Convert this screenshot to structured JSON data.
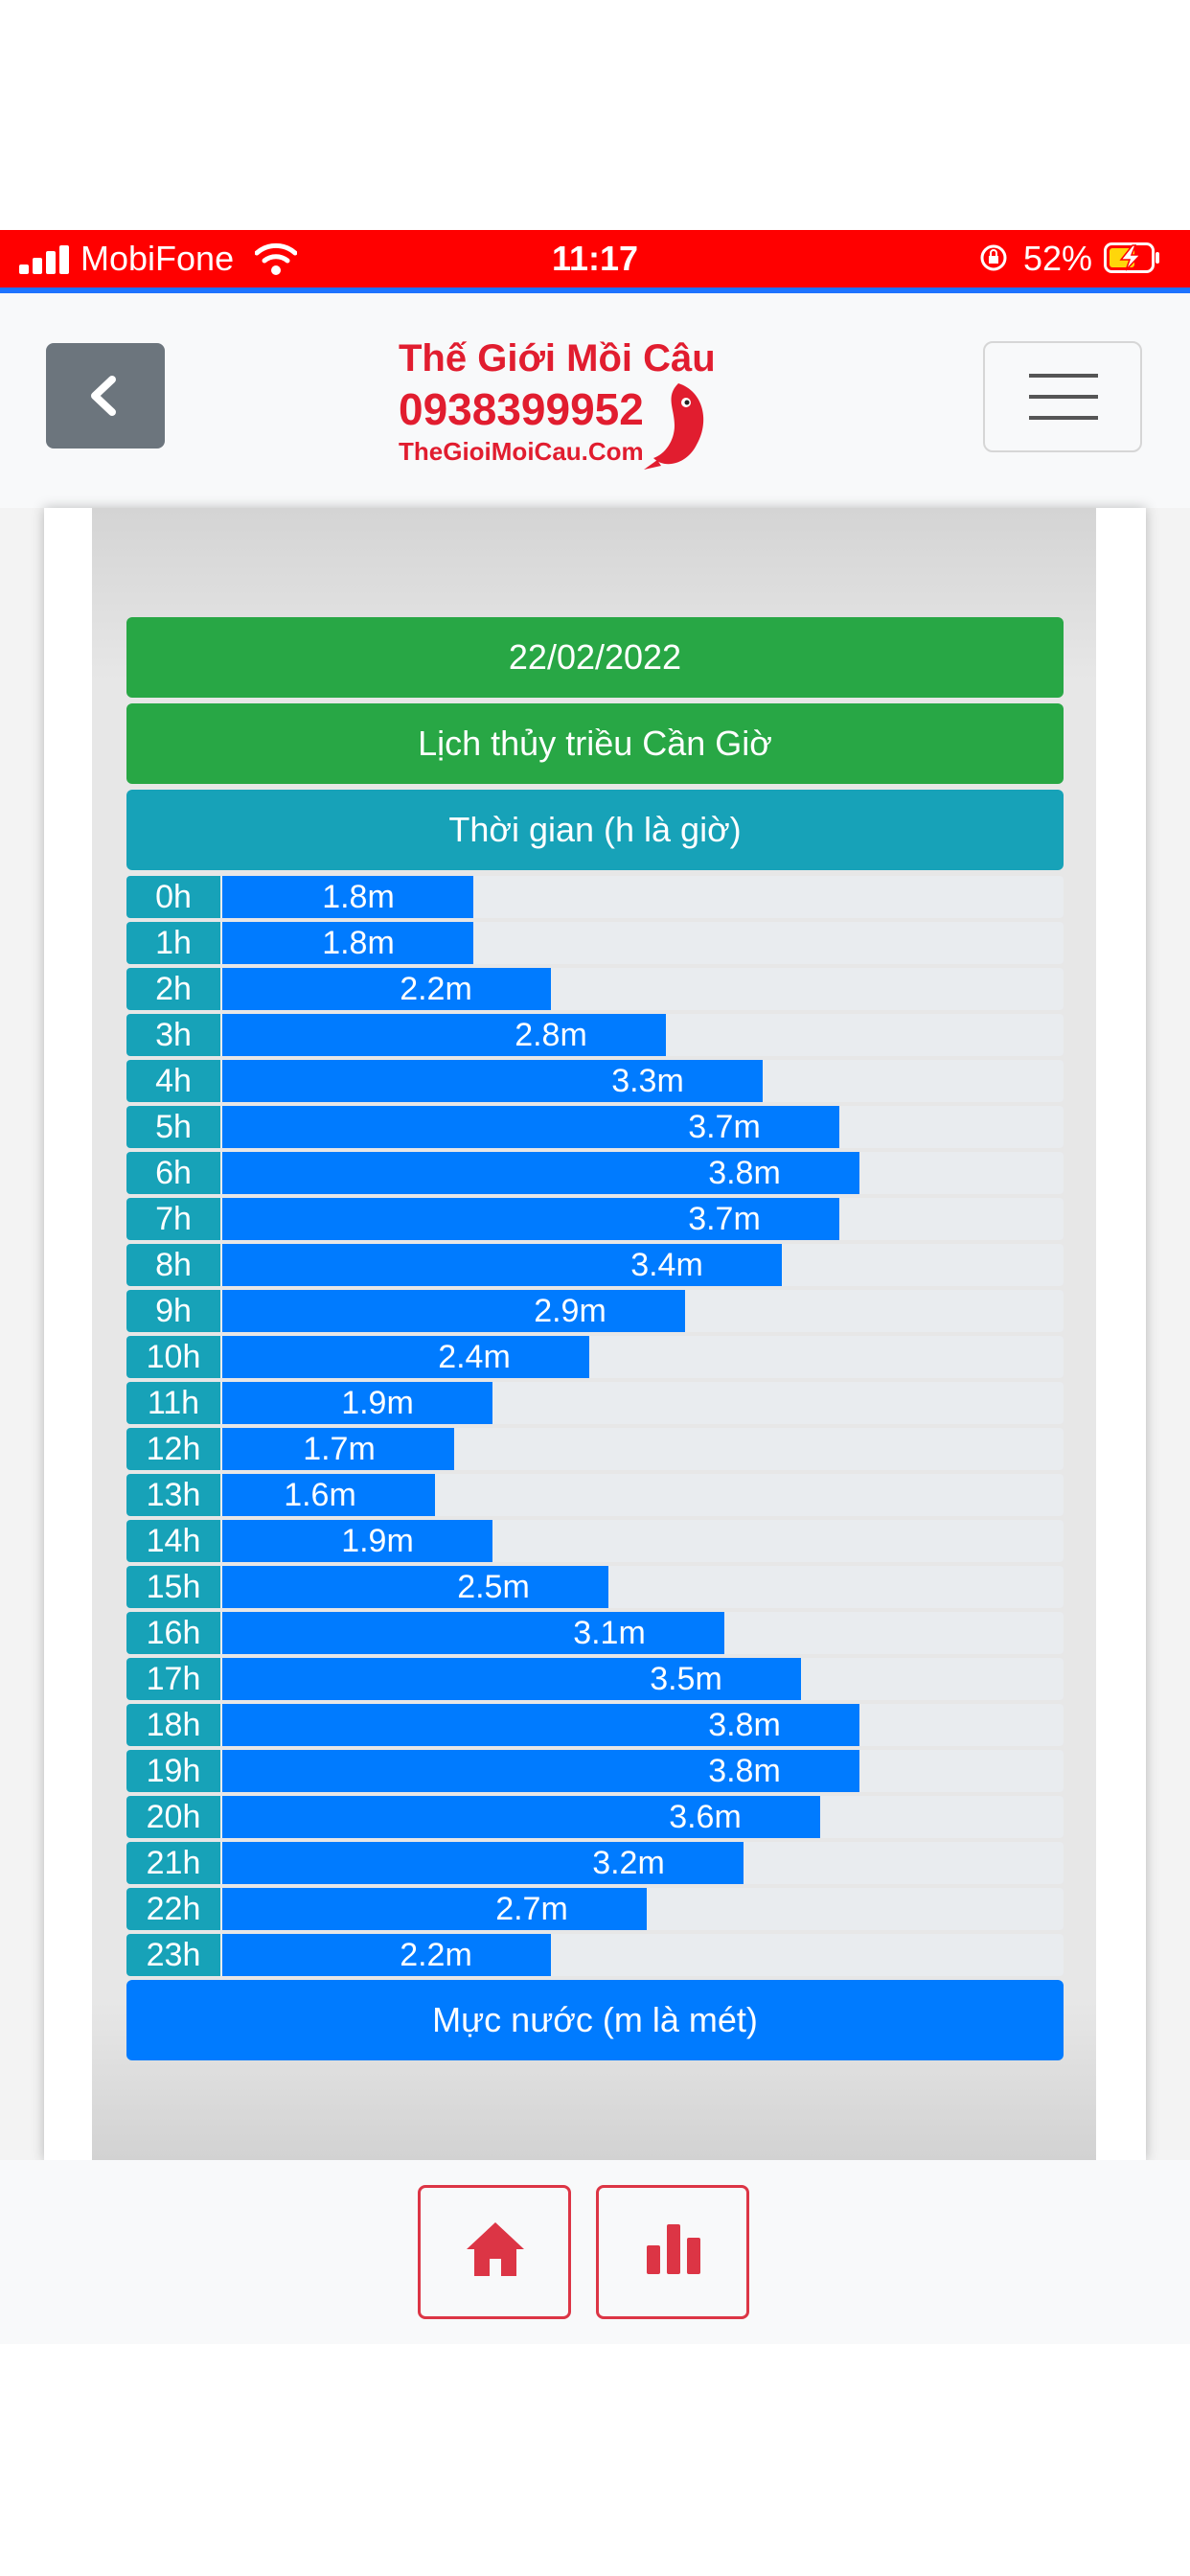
{
  "status_bar": {
    "carrier": "MobiFone",
    "time": "11:17",
    "battery_percent": "52%",
    "color": "#ff0000"
  },
  "header": {
    "back_icon": "chevron-left-icon",
    "logo": {
      "name": "Thế Giới Mồi Câu",
      "phone": "0938399952",
      "site": "TheGioiMoiCau.Com"
    },
    "menu_icon": "hamburger-icon"
  },
  "tide_table": {
    "date": "22/02/2022",
    "title": "Lịch thủy triều Cần Giờ",
    "time_header": "Thời gian (h là giờ)",
    "level_footer": "Mực nước (m là mét)",
    "colors": {
      "date": "#28a745",
      "time": "#17a2b8",
      "bar": "#007bff",
      "track": "#e9ecef"
    }
  },
  "chart_data": {
    "type": "bar",
    "orientation": "horizontal",
    "categories": [
      "0h",
      "1h",
      "2h",
      "3h",
      "4h",
      "5h",
      "6h",
      "7h",
      "8h",
      "9h",
      "10h",
      "11h",
      "12h",
      "13h",
      "14h",
      "15h",
      "16h",
      "17h",
      "18h",
      "19h",
      "20h",
      "21h",
      "22h",
      "23h"
    ],
    "values": [
      1.8,
      1.8,
      2.2,
      2.8,
      3.3,
      3.7,
      3.8,
      3.7,
      3.4,
      2.9,
      2.4,
      1.9,
      1.7,
      1.6,
      1.9,
      2.5,
      3.1,
      3.5,
      3.8,
      3.8,
      3.6,
      3.2,
      2.7,
      2.2
    ],
    "labels": [
      "1.8m",
      "1.8m",
      "2.2m",
      "2.8m",
      "3.3m",
      "3.7m",
      "3.8m",
      "3.7m",
      "3.4m",
      "2.9m",
      "2.4m",
      "1.9m",
      "1.7m",
      "1.6m",
      "1.9m",
      "2.5m",
      "3.1m",
      "3.5m",
      "3.8m",
      "3.8m",
      "3.6m",
      "3.2m",
      "2.7m",
      "2.2m"
    ],
    "title": "Lịch thủy triều Cần Giờ",
    "xlabel": "Thời gian (h là giờ)",
    "ylabel": "Mực nước (m là mét)"
  },
  "bottom_nav": {
    "items": [
      {
        "icon": "home-icon"
      },
      {
        "icon": "bar-chart-icon"
      }
    ]
  }
}
